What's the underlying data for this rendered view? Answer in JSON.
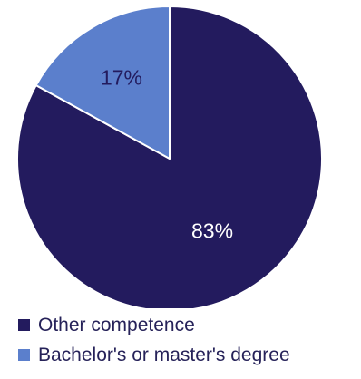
{
  "chart_data": {
    "type": "pie",
    "title": "",
    "slices": [
      {
        "label": "Other competence",
        "value": 83,
        "value_label": "83%",
        "color": "#231b5e",
        "label_color": "#ffffff"
      },
      {
        "label": "Bachelor's or master's degree",
        "value": 17,
        "value_label": "17%",
        "color": "#5b7fcc",
        "label_color": "#231b5e"
      }
    ],
    "start_angle_deg": 0,
    "direction": "clockwise",
    "legend_placement": "bottom-left"
  }
}
